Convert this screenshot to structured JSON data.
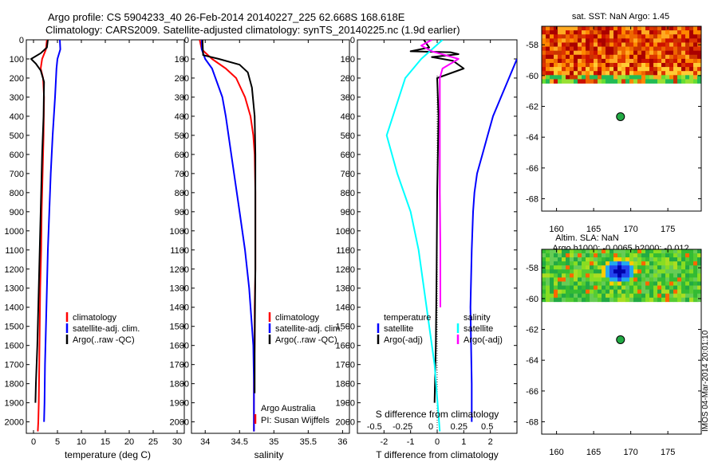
{
  "header": {
    "line1": "Argo profile: CS 5904233_40 26-Feb-2014 20140227_225 62.668S 168.618E",
    "line2": "Climatology: CARS2009. Satellite-adjusted climatology: synTS_20140225.nc (1.9d earlier)"
  },
  "credits": {
    "org": "Argo Australia",
    "pi": "PI: Susan Wijffels",
    "stamp": "IMOS 04-Mar-2014 20:01:10"
  },
  "colors": {
    "climatology": "#ff0000",
    "satellite": "#0000ff",
    "argo": "#000000",
    "sal_satellite": "#00ffff",
    "sal_argo": "#ff00ff",
    "float_marker": "#22aa44"
  },
  "chart_data": [
    {
      "id": "temperature",
      "type": "line",
      "xlabel": "temperature (deg C)",
      "ylabel": "",
      "xlim": [
        -1.5,
        31.5
      ],
      "ylim": [
        2060,
        0
      ],
      "xticks": [
        0,
        5,
        10,
        15,
        20,
        25,
        30
      ],
      "xtick_labels": [
        "0",
        "5",
        "10",
        "15",
        "20",
        "25",
        "30"
      ],
      "yticks": [
        0,
        100,
        200,
        300,
        400,
        500,
        600,
        700,
        800,
        900,
        1000,
        1100,
        1200,
        1300,
        1400,
        1500,
        1600,
        1700,
        1800,
        1900,
        2000
      ],
      "ytick_labels": [
        "0",
        "100",
        "200",
        "300",
        "400",
        "500",
        "600",
        "700",
        "800",
        "900",
        "1000",
        "1100",
        "1200",
        "1300",
        "1400",
        "1500",
        "1600",
        "1700",
        "1800",
        "1900",
        "2000"
      ],
      "legend": [
        "climatology",
        "satellite-adj. clim.",
        "Argo(..raw -QC)"
      ],
      "legend_position": "lower-middle",
      "series": [
        {
          "name": "climatology",
          "color": "#ff0000",
          "x": [
            2.8,
            2.6,
            1.8,
            1.5,
            2.0,
            2.2,
            2.1,
            1.9,
            1.7,
            1.6,
            1.4,
            1.3,
            1.2,
            1.1,
            1.0,
            0.9
          ],
          "y": [
            0,
            50,
            100,
            150,
            200,
            300,
            500,
            700,
            900,
            1100,
            1300,
            1500,
            1700,
            1900,
            2000,
            2050
          ]
        },
        {
          "name": "satellite-adj. clim.",
          "color": "#0000ff",
          "x": [
            5.5,
            5.6,
            5.0,
            4.8,
            4.5,
            4.0,
            3.6,
            3.3,
            3.0,
            2.8,
            2.6,
            2.4,
            2.3,
            2.2
          ],
          "y": [
            0,
            50,
            100,
            150,
            300,
            500,
            700,
            900,
            1100,
            1300,
            1500,
            1700,
            1900,
            2000
          ]
        },
        {
          "name": "Argo(..raw -QC)",
          "color": "#000000",
          "x": [
            3.0,
            2.8,
            1.5,
            -0.5,
            0.5,
            1.5,
            2.2,
            2.1,
            1.8,
            1.6,
            1.4,
            1.2,
            1.0,
            0.8,
            0.5,
            0.4
          ],
          "y": [
            0,
            40,
            70,
            100,
            125,
            160,
            220,
            400,
            600,
            800,
            1000,
            1200,
            1400,
            1600,
            1800,
            1900
          ]
        }
      ]
    },
    {
      "id": "salinity",
      "type": "line",
      "xlabel": "salinity",
      "ylabel": "",
      "xlim": [
        33.8,
        36.1
      ],
      "ylim": [
        2060,
        0
      ],
      "xticks": [
        34,
        34.5,
        35,
        35.5,
        36
      ],
      "xtick_labels": [
        "34",
        "34.5",
        "35",
        "35.5",
        "36"
      ],
      "yticks": [
        0,
        100,
        200,
        300,
        400,
        500,
        600,
        700,
        800,
        900,
        1000,
        1100,
        1200,
        1300,
        1400,
        1500,
        1600,
        1700,
        1800,
        1900,
        2000
      ],
      "legend": [
        "climatology",
        "satellite-adj. clim.",
        "Argo(..raw -QC)"
      ],
      "legend_position": "lower-right",
      "series": [
        {
          "name": "climatology",
          "color": "#ff0000",
          "x": [
            33.92,
            33.95,
            34.1,
            34.3,
            34.45,
            34.58,
            34.66,
            34.7,
            34.72,
            34.73,
            34.73,
            34.73,
            34.72,
            34.72,
            34.71,
            34.71
          ],
          "y": [
            0,
            50,
            100,
            150,
            200,
            300,
            400,
            500,
            600,
            800,
            1000,
            1200,
            1400,
            1600,
            1800,
            2050
          ]
        },
        {
          "name": "satellite-adj. clim.",
          "color": "#0000ff",
          "x": [
            33.95,
            33.95,
            34.0,
            34.1,
            34.15,
            34.25,
            34.3,
            34.38,
            34.5,
            34.58,
            34.64,
            34.68,
            34.7,
            34.71,
            34.71
          ],
          "y": [
            0,
            50,
            100,
            150,
            200,
            300,
            400,
            600,
            900,
            1100,
            1300,
            1500,
            1600,
            1800,
            2050
          ]
        },
        {
          "name": "Argo(..raw -QC)",
          "color": "#000000",
          "x": [
            33.96,
            33.97,
            34.2,
            34.5,
            34.62,
            34.68,
            34.72,
            34.73,
            34.73,
            34.73,
            34.72,
            34.72
          ],
          "y": [
            0,
            80,
            100,
            130,
            170,
            250,
            400,
            600,
            800,
            1200,
            1600,
            1850
          ]
        }
      ]
    },
    {
      "id": "difference",
      "type": "line",
      "xlabel": "T difference from climatology",
      "xlabel_top": "S difference from climatology",
      "xlim": [
        -3,
        3
      ],
      "ylim": [
        2060,
        0
      ],
      "xticks_bottom": [
        -2,
        -1,
        0,
        1,
        2
      ],
      "xtick_labels_bottom": [
        "-2",
        "-1",
        "0",
        "1",
        "2"
      ],
      "xtick_labels_top": [
        "-0.5",
        "-0.25",
        "0",
        "0.25",
        "0.5"
      ],
      "yticks": [
        0,
        100,
        200,
        300,
        400,
        500,
        600,
        700,
        800,
        900,
        1000,
        1100,
        1200,
        1300,
        1400,
        1500,
        1600,
        1700,
        1800,
        1900,
        2000
      ],
      "legend_titles": [
        "temperature",
        "salinity"
      ],
      "legend": [
        "satellite",
        "Argo(-adj)",
        "satellite",
        "Argo(-adj)"
      ],
      "legend_position": "lower-middle",
      "series": [
        {
          "name": "temperature satellite",
          "color": "#0000ff",
          "x": [
            3.0,
            2.7,
            2.4,
            2.1,
            1.9,
            1.7,
            1.5,
            1.4,
            1.35,
            1.3,
            1.25,
            1.3,
            1.3
          ],
          "y": [
            100,
            200,
            300,
            400,
            500,
            600,
            700,
            800,
            900,
            1100,
            1400,
            1800,
            2000
          ]
        },
        {
          "name": "temperature Argo(-adj)",
          "color": "#000000",
          "x": [
            -0.5,
            -0.3,
            -1.0,
            0.5,
            0.8,
            -0.2,
            0.6,
            1.0,
            0.0,
            0.05,
            0.0,
            -0.02,
            -0.05,
            -0.1
          ],
          "y": [
            0,
            40,
            60,
            65,
            75,
            90,
            110,
            150,
            200,
            400,
            800,
            1200,
            1600,
            1900
          ]
        },
        {
          "name": "salinity satellite",
          "color": "#00ffff",
          "x": [
            0.2,
            -0.6,
            -1.2,
            -1.9,
            -1.5,
            -1.0,
            -0.7,
            -0.4,
            -0.1,
            0.1
          ],
          "y": [
            0,
            100,
            200,
            500,
            700,
            900,
            1100,
            1400,
            1700,
            2050
          ]
        },
        {
          "name": "salinity Argo(-adj)",
          "color": "#ff00ff",
          "x": [
            -0.2,
            -0.6,
            -0.2,
            0.3,
            0.8,
            0.2,
            0.1,
            0.1,
            0.1,
            0.12,
            0.12
          ],
          "y": [
            0,
            30,
            60,
            80,
            100,
            150,
            200,
            500,
            800,
            1100,
            1400
          ]
        }
      ]
    },
    {
      "id": "sst_map",
      "type": "heatmap",
      "title": "sat. SST: NaN  Argo: 1.45",
      "xlim": [
        158,
        179.5
      ],
      "ylim": [
        -68.8,
        -56.8
      ],
      "xticks": [
        160,
        165,
        170,
        175
      ],
      "xtick_labels": [
        "160",
        "165",
        "170",
        "175"
      ],
      "yticks": [
        -58,
        -60,
        -62,
        -64,
        -66,
        -68
      ],
      "ytick_labels": [
        "-58",
        "-60",
        "-62",
        "-64",
        "-66",
        "-68"
      ],
      "data_lat_range": [
        -60.5,
        -56.8
      ],
      "float_position": {
        "lon": 168.618,
        "lat": -62.668
      }
    },
    {
      "id": "sla_map",
      "type": "heatmap",
      "title": "Altim. SLA: NaN",
      "subtitle": "Argo h1000: -0.0065  h2000: -0.012",
      "xlim": [
        158,
        179.5
      ],
      "ylim": [
        -68.8,
        -56.8
      ],
      "xticks": [
        160,
        165,
        170,
        175
      ],
      "xtick_labels": [
        "160",
        "165",
        "170",
        "175"
      ],
      "yticks": [
        -58,
        -60,
        -62,
        -64,
        -66,
        -68
      ],
      "ytick_labels": [
        "-58",
        "-60",
        "-62",
        "-64",
        "-66",
        "-68"
      ],
      "data_lat_range": [
        -60.2,
        -56.8
      ],
      "float_position": {
        "lon": 168.618,
        "lat": -62.668
      }
    }
  ]
}
